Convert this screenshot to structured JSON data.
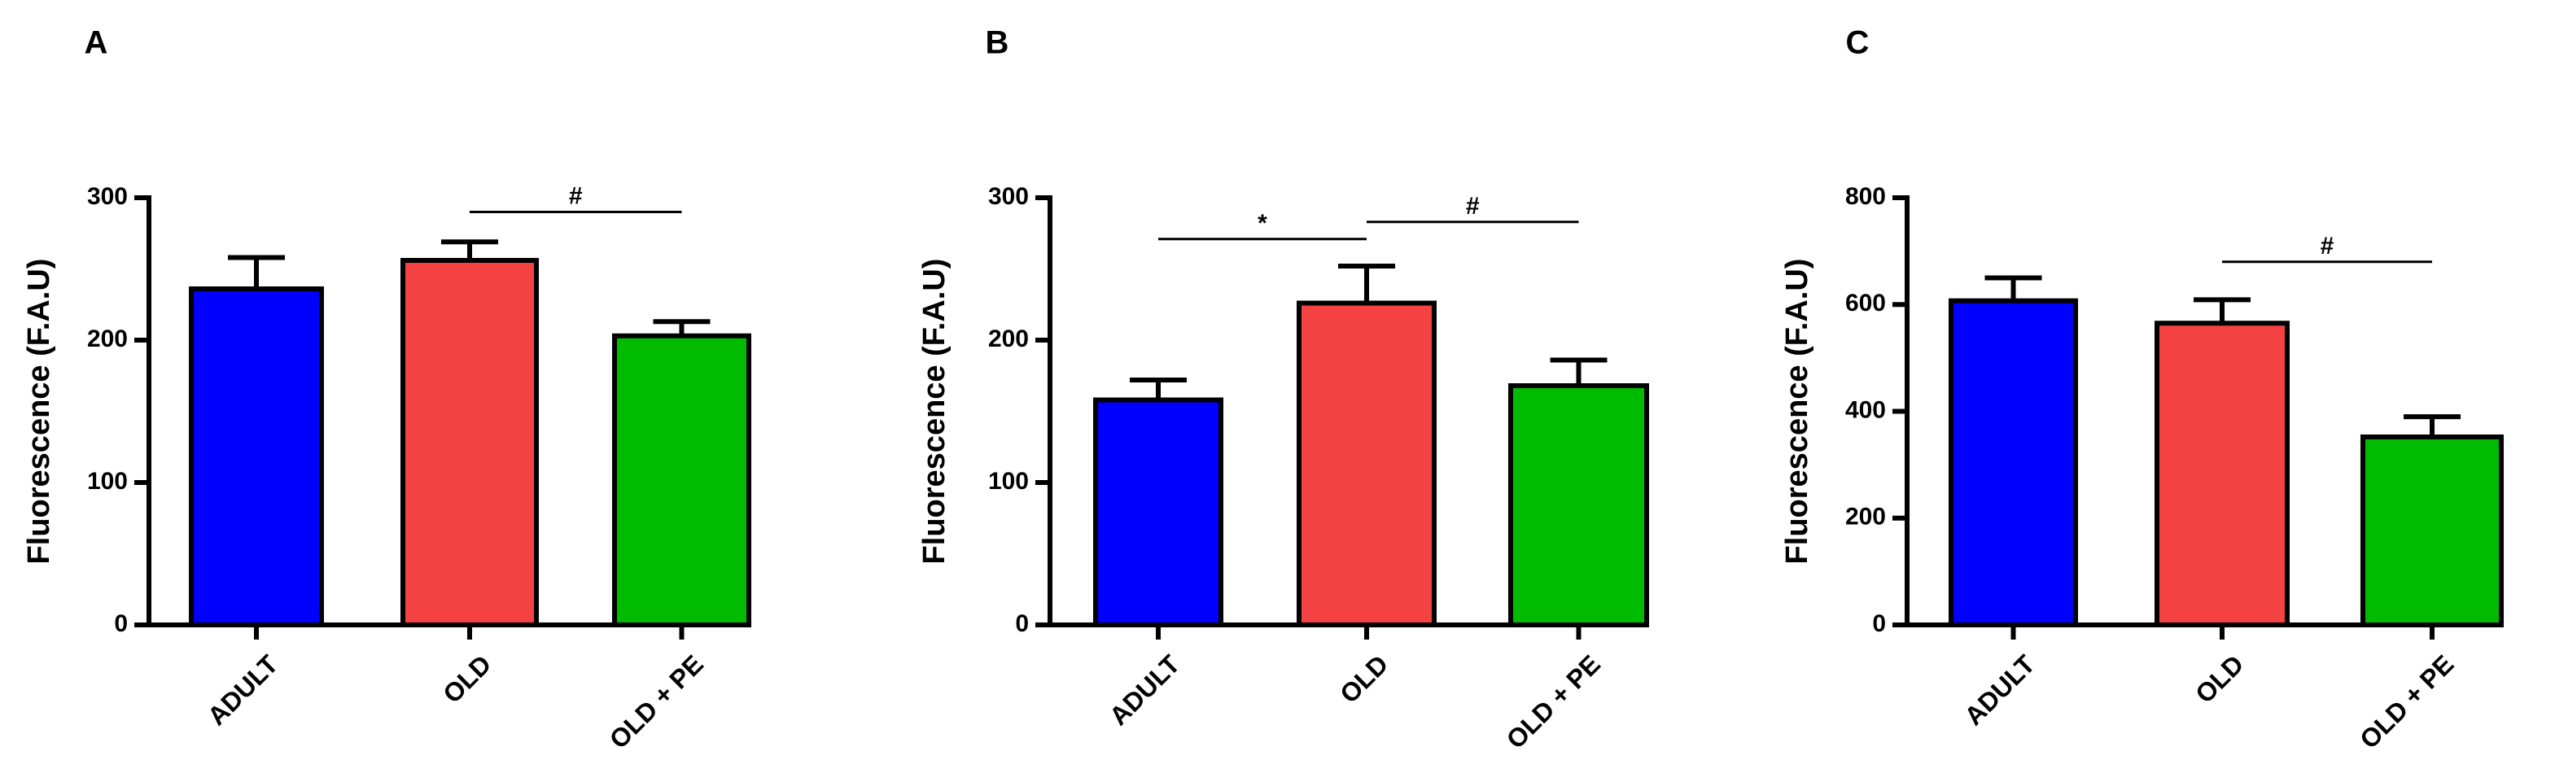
{
  "chart_data": [
    {
      "type": "bar",
      "panel_label": "A",
      "categories": [
        "ADULT",
        "OLD",
        "OLD + PE"
      ],
      "values": [
        236,
        256,
        203
      ],
      "errors": [
        22,
        13,
        10
      ],
      "colors": [
        "#0000FF",
        "#F54242",
        "#00BB00"
      ],
      "ylabel": "Fluorescence (F.A.U)",
      "ylim": [
        0,
        300
      ],
      "yticks": [
        0,
        100,
        200,
        300
      ],
      "significance": [
        {
          "from": 1,
          "to": 2,
          "level": 290,
          "label": "#"
        }
      ]
    },
    {
      "type": "bar",
      "panel_label": "B",
      "categories": [
        "ADULT",
        "OLD",
        "OLD + PE"
      ],
      "values": [
        158,
        226,
        168
      ],
      "errors": [
        14,
        26,
        18
      ],
      "colors": [
        "#0000FF",
        "#F54242",
        "#00BB00"
      ],
      "ylabel": "Fluorescence (F.A.U)",
      "ylim": [
        0,
        300
      ],
      "yticks": [
        0,
        100,
        200,
        300
      ],
      "significance": [
        {
          "from": 0,
          "to": 1,
          "level": 271,
          "label": "*"
        },
        {
          "from": 1,
          "to": 2,
          "level": 283,
          "label": "#"
        }
      ]
    },
    {
      "type": "bar",
      "panel_label": "C",
      "categories": [
        "ADULT",
        "OLD",
        "OLD + PE"
      ],
      "values": [
        607,
        565,
        352
      ],
      "errors": [
        43,
        44,
        38
      ],
      "colors": [
        "#0000FF",
        "#F54242",
        "#00BB00"
      ],
      "ylabel": "Fluorescence (F.A.U)",
      "ylim": [
        0,
        800
      ],
      "yticks": [
        0,
        200,
        400,
        600,
        800
      ],
      "significance": [
        {
          "from": 1,
          "to": 2,
          "level": 680,
          "label": "#"
        }
      ]
    }
  ]
}
